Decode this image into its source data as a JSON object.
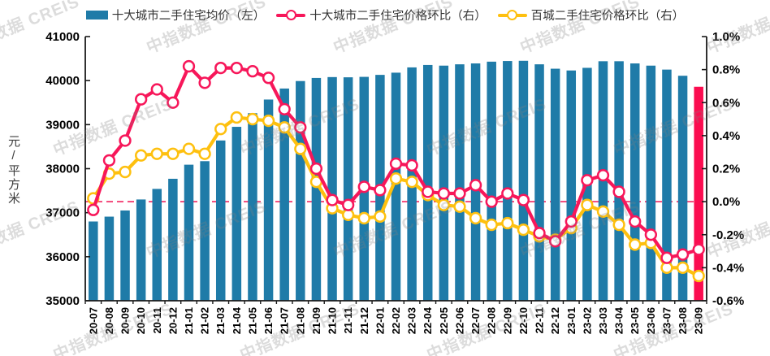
{
  "watermark": {
    "text": "中指数据 CREIS"
  },
  "legend": [
    {
      "label": "十大城市二手住宅均价（左）",
      "type": "bar",
      "color": "#1F7BA8"
    },
    {
      "label": "十大城市二手住宅价格环比（右）",
      "type": "line",
      "color": "#F7175A"
    },
    {
      "label": "百城二手住宅价格环比（右）",
      "type": "line",
      "color": "#FEC00F"
    }
  ],
  "chart_data": {
    "type": "bar+line",
    "categories": [
      "20-07",
      "20-08",
      "20-09",
      "20-10",
      "20-11",
      "20-12",
      "21-01",
      "21-02",
      "21-03",
      "21-04",
      "21-05",
      "21-06",
      "21-07",
      "21-08",
      "21-09",
      "21-10",
      "21-11",
      "21-12",
      "22-01",
      "22-02",
      "22-03",
      "22-04",
      "22-05",
      "22-06",
      "22-07",
      "22-08",
      "22-09",
      "22-10",
      "22-11",
      "22-12",
      "23-01",
      "23-02",
      "23-03",
      "23-04",
      "23-05",
      "23-06",
      "23-07",
      "23-08",
      "23-09"
    ],
    "series": [
      {
        "name": "十大城市二手住宅均价（左）",
        "type": "bar",
        "axis": "left",
        "color": "#1F7BA8",
        "last_bar_highlight_color": "#FB0D50",
        "values": [
          36800,
          36910,
          37050,
          37300,
          37540,
          37770,
          38090,
          38170,
          38640,
          38950,
          39260,
          39570,
          39820,
          39990,
          40060,
          40080,
          40075,
          40085,
          40130,
          40180,
          40300,
          40355,
          40340,
          40370,
          40390,
          40430,
          40445,
          40450,
          40370,
          40270,
          40230,
          40290,
          40440,
          40440,
          40390,
          40340,
          40250,
          40110,
          39860
        ]
      },
      {
        "name": "十大城市二手住宅价格环比（右）",
        "type": "line",
        "axis": "right",
        "color": "#F7175A",
        "values": [
          -0.05,
          0.25,
          0.37,
          0.62,
          0.68,
          0.6,
          0.82,
          0.72,
          0.81,
          0.81,
          0.79,
          0.75,
          0.56,
          0.45,
          0.2,
          0.01,
          -0.02,
          0.09,
          0.07,
          0.23,
          0.22,
          0.06,
          0.05,
          0.05,
          0.1,
          0.0,
          0.05,
          0.01,
          -0.19,
          -0.24,
          -0.12,
          0.13,
          0.16,
          0.06,
          -0.12,
          -0.2,
          -0.34,
          -0.32,
          -0.29
        ]
      },
      {
        "name": "百城二手住宅价格环比（右）",
        "type": "line",
        "axis": "right",
        "color": "#FEC00F",
        "values": [
          0.02,
          0.17,
          0.18,
          0.28,
          0.29,
          0.29,
          0.32,
          0.29,
          0.44,
          0.51,
          0.5,
          0.49,
          0.45,
          0.32,
          0.12,
          -0.04,
          -0.08,
          -0.1,
          -0.09,
          0.14,
          0.12,
          0.04,
          -0.02,
          -0.03,
          -0.1,
          -0.14,
          -0.13,
          -0.17,
          -0.21,
          -0.23,
          -0.16,
          -0.02,
          -0.06,
          -0.14,
          -0.26,
          -0.25,
          -0.4,
          -0.4,
          -0.45
        ]
      }
    ],
    "left_axis": {
      "label": "元/平方米",
      "min": 35000,
      "max": 41000,
      "step": 1000,
      "ticks": [
        "41000",
        "40000",
        "39000",
        "38000",
        "37000",
        "36000",
        "35000"
      ]
    },
    "right_axis": {
      "min": -0.6,
      "max": 1.0,
      "step": 0.2,
      "ticks": [
        "1.0%",
        "0.8%",
        "0.6%",
        "0.4%",
        "0.2%",
        "0.0%",
        "-0.2%",
        "-0.4%",
        "-0.6%"
      ]
    },
    "zero_line": {
      "value": 0.0,
      "style": "dashed",
      "color": "#F2336B"
    },
    "grid": "off",
    "legend_position": "top"
  }
}
